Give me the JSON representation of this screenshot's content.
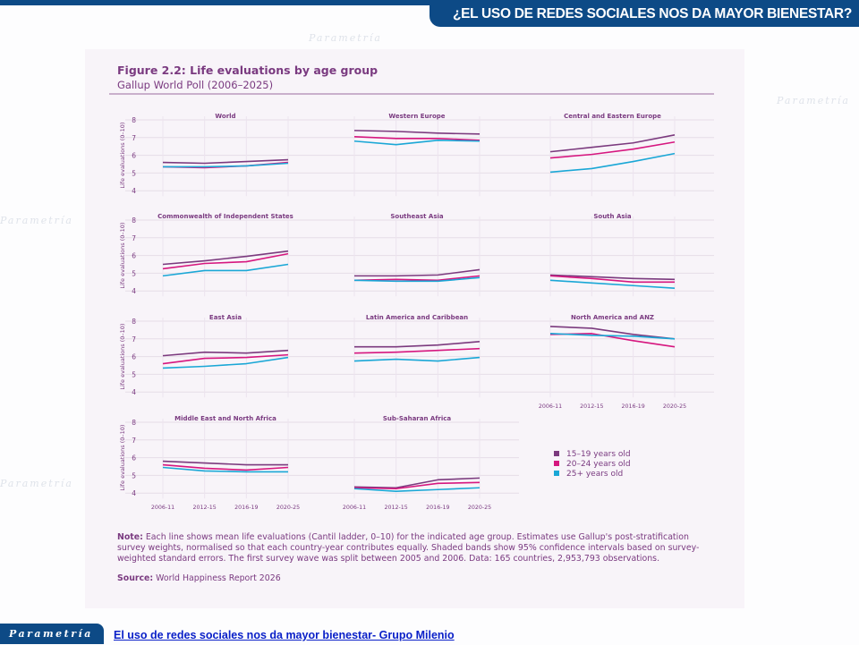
{
  "header": {
    "title": "¿EL USO DE REDES SOCIALES NOS DA MAYOR BIENESTAR?"
  },
  "footer": {
    "logo": "Parametría",
    "link": "El uso de redes sociales nos da mayor bienestar- Grupo Milenio"
  },
  "colors": {
    "banner": "#0d4a86",
    "s15_19": "#7b3a7e",
    "s20_24": "#d6177f",
    "s25plus": "#1aa7d6",
    "text": "#7a3a80"
  },
  "chart_data": {
    "type": "line",
    "title": "Figure 2.2: Life evaluations by age group",
    "subtitle": "Gallup World Poll (2006–2025)",
    "ylabel": "Life evaluations (0–10)",
    "ylim": [
      4,
      8
    ],
    "yticks": [
      "8",
      "7",
      "6",
      "5",
      "4"
    ],
    "x": [
      "2006-11",
      "2012-15",
      "2016-19",
      "2020-25"
    ],
    "grid": true,
    "legend_placement": "bottom-right",
    "legend": [
      "15–19 years old",
      "20–24 years old",
      "25+ years old"
    ],
    "panels": [
      {
        "title": "World",
        "series": [
          [
            5.6,
            5.55,
            5.65,
            5.75
          ],
          [
            5.35,
            5.3,
            5.4,
            5.6
          ],
          [
            5.35,
            5.35,
            5.4,
            5.55
          ]
        ]
      },
      {
        "title": "Western Europe",
        "series": [
          [
            7.4,
            7.35,
            7.25,
            7.2
          ],
          [
            7.05,
            6.95,
            6.95,
            6.85
          ],
          [
            6.8,
            6.6,
            6.85,
            6.8
          ]
        ]
      },
      {
        "title": "Central and Eastern Europe",
        "series": [
          [
            6.2,
            6.45,
            6.7,
            7.15
          ],
          [
            5.85,
            6.05,
            6.35,
            6.75
          ],
          [
            5.05,
            5.25,
            5.65,
            6.1
          ]
        ]
      },
      {
        "title": "Commonwealth of Independent States",
        "series": [
          [
            5.5,
            5.7,
            5.95,
            6.25
          ],
          [
            5.25,
            5.55,
            5.65,
            6.1
          ],
          [
            4.85,
            5.15,
            5.15,
            5.5
          ]
        ]
      },
      {
        "title": "Southeast Asia",
        "series": [
          [
            4.85,
            4.85,
            4.9,
            5.2
          ],
          [
            4.6,
            4.65,
            4.6,
            4.85
          ],
          [
            4.6,
            4.55,
            4.55,
            4.75
          ]
        ]
      },
      {
        "title": "South Asia",
        "series": [
          [
            4.9,
            4.8,
            4.7,
            4.65
          ],
          [
            4.85,
            4.7,
            4.5,
            4.5
          ],
          [
            4.6,
            4.45,
            4.3,
            4.15
          ]
        ]
      },
      {
        "title": "East Asia",
        "series": [
          [
            6.05,
            6.25,
            6.2,
            6.35
          ],
          [
            5.6,
            5.9,
            5.95,
            6.1
          ],
          [
            5.35,
            5.45,
            5.6,
            5.95
          ]
        ]
      },
      {
        "title": "Latin America and Caribbean",
        "series": [
          [
            6.55,
            6.55,
            6.65,
            6.85
          ],
          [
            6.2,
            6.25,
            6.35,
            6.45
          ],
          [
            5.75,
            5.85,
            5.75,
            5.95
          ]
        ]
      },
      {
        "title": "North America and ANZ",
        "series": [
          [
            7.7,
            7.6,
            7.25,
            7.0
          ],
          [
            7.25,
            7.3,
            6.9,
            6.55
          ],
          [
            7.3,
            7.2,
            7.15,
            7.0
          ]
        ]
      },
      {
        "title": "Middle East and North Africa",
        "series": [
          [
            5.8,
            5.7,
            5.6,
            5.6
          ],
          [
            5.6,
            5.4,
            5.3,
            5.45
          ],
          [
            5.45,
            5.25,
            5.2,
            5.2
          ]
        ]
      },
      {
        "title": "Sub-Saharan Africa",
        "series": [
          [
            4.35,
            4.3,
            4.75,
            4.85
          ],
          [
            4.3,
            4.25,
            4.55,
            4.6
          ],
          [
            4.25,
            4.1,
            4.2,
            4.3
          ]
        ]
      }
    ],
    "note_label": "Note:",
    "note": " Each line shows mean life evaluations (Cantil ladder, 0–10) for the indicated age group. Estimates use Gallup's post-stratification survey weights, normalised so that each country-year contributes equally. Shaded bands show 95% confidence intervals based on survey-weighted standard errors. The first survey wave was split between 2005 and 2006. Data: 165 countries, 2,953,793 observations.",
    "source_label": "Source:",
    "source": " World Happiness Report 2026"
  }
}
